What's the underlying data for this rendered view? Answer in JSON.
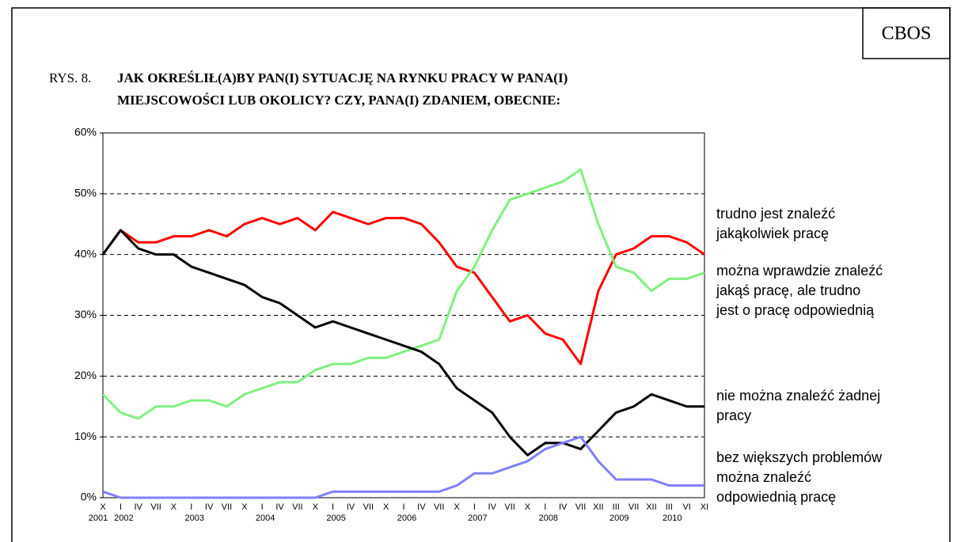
{
  "chart_data": {
    "type": "line",
    "brand": "CBOS",
    "figure_label": "RYS. 8.",
    "title_lines": [
      "JAK OKREŚLIŁ(A)BY PAN(I) SYTUACJĘ NA RYNKU PRACY W PANA(I)",
      "MIEJSCOWOŚCI LUB OKOLICY? CZY, PANA(I) ZDANIEM, OBECNIE:"
    ],
    "categories": [
      "X",
      "I",
      "IV",
      "VII",
      "X",
      "I",
      "IV",
      "VII",
      "X",
      "I",
      "IV",
      "VII",
      "X",
      "I",
      "IV",
      "VII",
      "X",
      "I",
      "IV",
      "VII",
      "X",
      "I",
      "IV",
      "VII",
      "X",
      "I",
      "IV",
      "VII",
      "XII",
      "III",
      "VII",
      "XII",
      "III",
      "VI",
      "XI"
    ],
    "years": [
      "2001",
      "2002",
      "2003",
      "2004",
      "2005",
      "2006",
      "2007",
      "2008",
      "2009",
      "2010"
    ],
    "ylim": [
      0,
      60
    ],
    "yticks": [
      {
        "value": 0,
        "label": "0%"
      },
      {
        "value": 10,
        "label": "10%"
      },
      {
        "value": 20,
        "label": "20%"
      },
      {
        "value": 30,
        "label": "30%"
      },
      {
        "value": 40,
        "label": "40%"
      },
      {
        "value": 50,
        "label": "50%"
      },
      {
        "value": 60,
        "label": "60%"
      }
    ],
    "grid": true,
    "series": [
      {
        "name": "trudno jest znaleźć jakąkolwiek pracę",
        "color": "#ff0000",
        "values": [
          40,
          44,
          42,
          42,
          43,
          43,
          44,
          43,
          45,
          46,
          45,
          46,
          44,
          47,
          46,
          45,
          46,
          46,
          45,
          42,
          38,
          37,
          33,
          29,
          30,
          27,
          26,
          22,
          34,
          40,
          41,
          43,
          43,
          42,
          40
        ]
      },
      {
        "name": "można wprawdzie znaleźć jakąś pracę, ale trudno jest o pracę odpowiednią",
        "color": "#80f080",
        "values": [
          17,
          14,
          13,
          15,
          15,
          16,
          16,
          15,
          17,
          18,
          19,
          19,
          21,
          22,
          22,
          23,
          23,
          24,
          25,
          26,
          34,
          38,
          44,
          49,
          50,
          51,
          52,
          54,
          45,
          38,
          37,
          34,
          36,
          36,
          37
        ]
      },
      {
        "name": "nie można znaleźć żadnej pracy",
        "color": "#000000",
        "values": [
          40,
          44,
          41,
          40,
          40,
          38,
          37,
          36,
          35,
          33,
          32,
          30,
          28,
          29,
          28,
          27,
          26,
          25,
          24,
          22,
          18,
          16,
          14,
          10,
          7,
          9,
          9,
          8,
          11,
          14,
          15,
          17,
          16,
          15,
          15
        ]
      },
      {
        "name": "bez większych problemów można znaleźć odpowiednią pracę",
        "color": "#8080ff",
        "values": [
          1,
          0,
          0,
          0,
          0,
          0,
          0,
          0,
          0,
          0,
          0,
          0,
          0,
          1,
          1,
          1,
          1,
          1,
          1,
          1,
          2,
          4,
          4,
          5,
          6,
          8,
          9,
          10,
          6,
          3,
          3,
          3,
          2,
          2,
          2
        ]
      }
    ]
  }
}
